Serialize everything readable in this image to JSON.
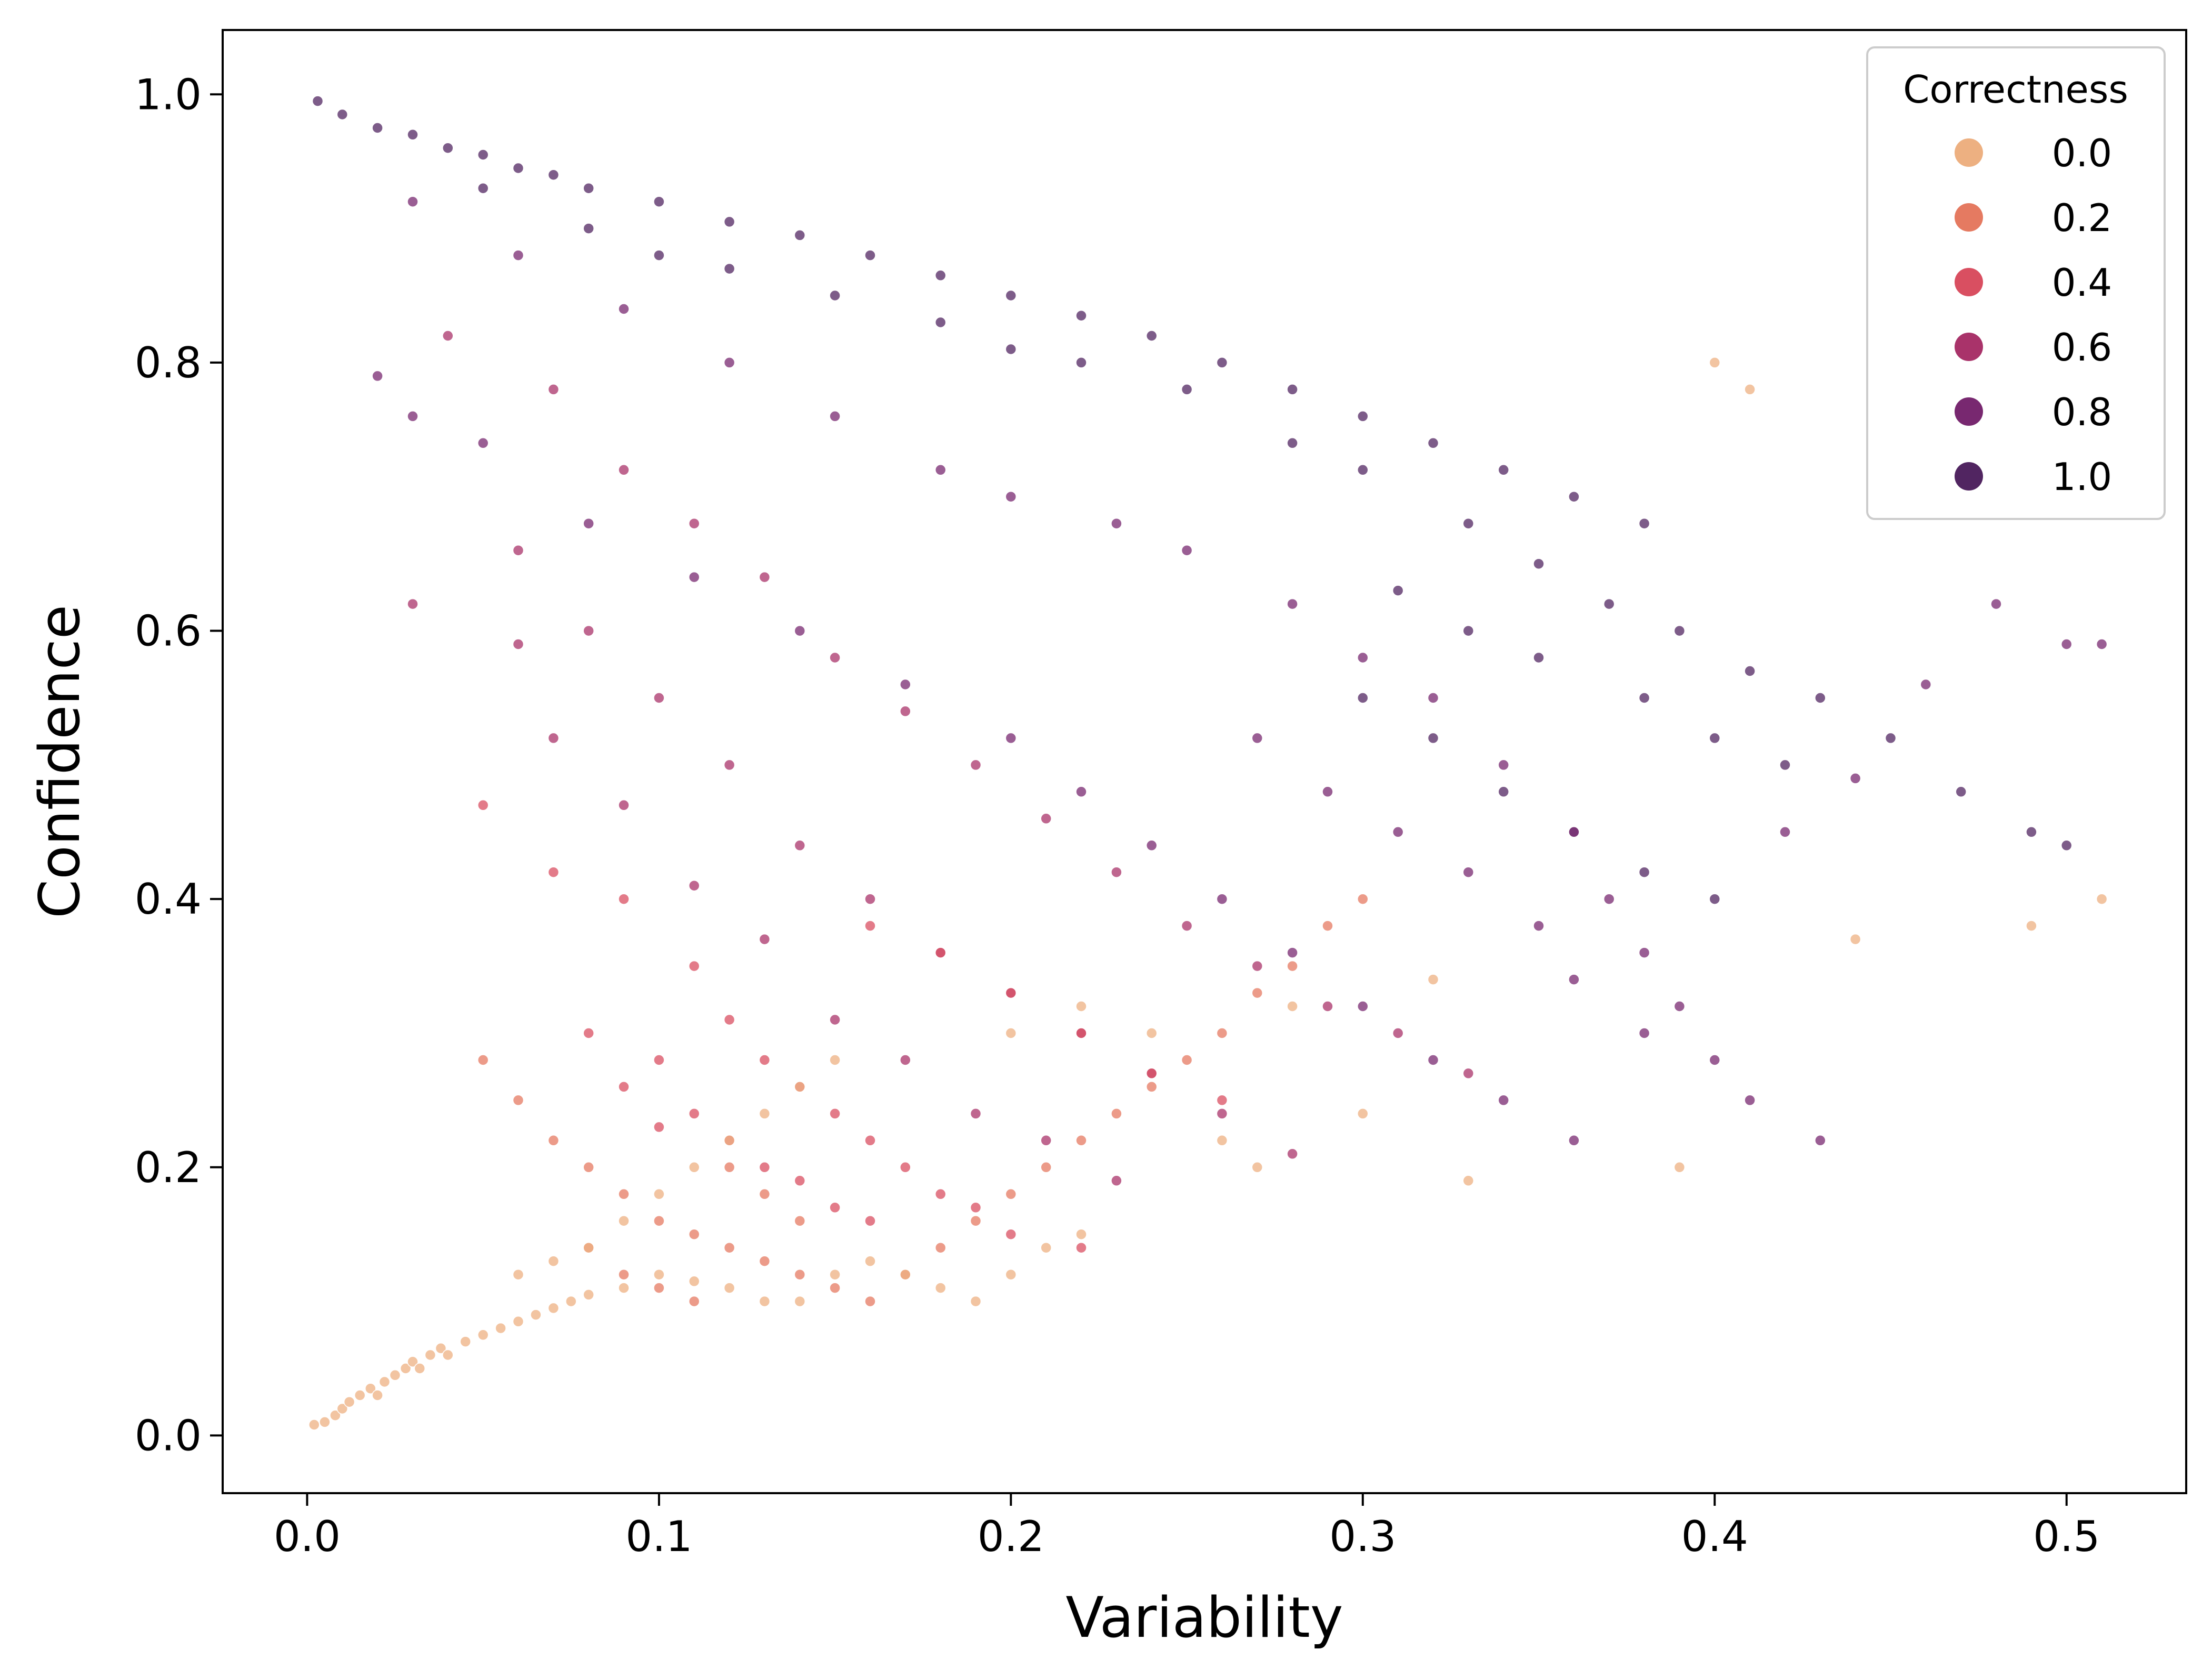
{
  "chart_data": {
    "type": "scatter",
    "title": "",
    "xlabel": "Variability",
    "ylabel": "Confidence",
    "xlim": [
      -0.024,
      0.534
    ],
    "ylim": [
      -0.043,
      1.048
    ],
    "xticks": [
      0.0,
      0.1,
      0.2,
      0.3,
      0.4,
      0.5
    ],
    "xtick_labels": [
      "0.0",
      "0.1",
      "0.2",
      "0.3",
      "0.4",
      "0.5"
    ],
    "yticks": [
      0.0,
      0.2,
      0.4,
      0.6,
      0.8,
      1.0
    ],
    "ytick_labels": [
      "0.0",
      "0.2",
      "0.4",
      "0.6",
      "0.8",
      "1.0"
    ],
    "grid": false,
    "legend": {
      "title": "Correctness",
      "placement": "top-right",
      "entries": [
        {
          "label": "0.0",
          "value": 0.0,
          "color": "#EDB081"
        },
        {
          "label": "0.2",
          "value": 0.2,
          "color": "#E57A61"
        },
        {
          "label": "0.4",
          "value": 0.4,
          "color": "#D94F61"
        },
        {
          "label": "0.6",
          "value": 0.6,
          "color": "#A9336A"
        },
        {
          "label": "0.8",
          "value": 0.8,
          "color": "#782870"
        },
        {
          "label": "1.0",
          "value": 1.0,
          "color": "#512561"
        }
      ]
    },
    "hue_groups": [
      {
        "correctness": 1.0,
        "color": "#512561",
        "points": [
          [
            0.003,
            0.995
          ],
          [
            0.01,
            0.985
          ],
          [
            0.02,
            0.975
          ],
          [
            0.03,
            0.97
          ],
          [
            0.04,
            0.96
          ],
          [
            0.05,
            0.955
          ],
          [
            0.06,
            0.945
          ],
          [
            0.07,
            0.94
          ],
          [
            0.08,
            0.93
          ],
          [
            0.1,
            0.92
          ],
          [
            0.12,
            0.905
          ],
          [
            0.14,
            0.895
          ],
          [
            0.16,
            0.88
          ],
          [
            0.18,
            0.865
          ],
          [
            0.2,
            0.85
          ],
          [
            0.22,
            0.835
          ],
          [
            0.24,
            0.82
          ],
          [
            0.26,
            0.8
          ],
          [
            0.28,
            0.78
          ],
          [
            0.3,
            0.76
          ],
          [
            0.32,
            0.74
          ],
          [
            0.34,
            0.72
          ],
          [
            0.36,
            0.7
          ],
          [
            0.38,
            0.68
          ],
          [
            0.05,
            0.93
          ],
          [
            0.08,
            0.9
          ],
          [
            0.1,
            0.88
          ],
          [
            0.12,
            0.87
          ],
          [
            0.15,
            0.85
          ],
          [
            0.18,
            0.83
          ],
          [
            0.2,
            0.81
          ],
          [
            0.22,
            0.8
          ],
          [
            0.25,
            0.78
          ],
          [
            0.28,
            0.74
          ],
          [
            0.3,
            0.72
          ],
          [
            0.33,
            0.68
          ],
          [
            0.35,
            0.65
          ],
          [
            0.37,
            0.62
          ],
          [
            0.39,
            0.6
          ],
          [
            0.41,
            0.57
          ],
          [
            0.43,
            0.55
          ],
          [
            0.45,
            0.52
          ],
          [
            0.47,
            0.48
          ],
          [
            0.49,
            0.45
          ],
          [
            0.5,
            0.44
          ],
          [
            0.31,
            0.63
          ],
          [
            0.33,
            0.6
          ],
          [
            0.35,
            0.58
          ],
          [
            0.38,
            0.55
          ],
          [
            0.4,
            0.52
          ],
          [
            0.42,
            0.5
          ],
          [
            0.3,
            0.55
          ],
          [
            0.32,
            0.52
          ],
          [
            0.34,
            0.48
          ],
          [
            0.36,
            0.45
          ],
          [
            0.38,
            0.42
          ],
          [
            0.4,
            0.4
          ]
        ]
      },
      {
        "correctness": 0.8,
        "color": "#782870",
        "points": [
          [
            0.03,
            0.92
          ],
          [
            0.06,
            0.88
          ],
          [
            0.09,
            0.84
          ],
          [
            0.12,
            0.8
          ],
          [
            0.15,
            0.76
          ],
          [
            0.18,
            0.72
          ],
          [
            0.2,
            0.7
          ],
          [
            0.23,
            0.68
          ],
          [
            0.25,
            0.66
          ],
          [
            0.28,
            0.62
          ],
          [
            0.3,
            0.58
          ],
          [
            0.32,
            0.55
          ],
          [
            0.34,
            0.5
          ],
          [
            0.36,
            0.45
          ],
          [
            0.37,
            0.4
          ],
          [
            0.38,
            0.36
          ],
          [
            0.39,
            0.32
          ],
          [
            0.4,
            0.28
          ],
          [
            0.41,
            0.25
          ],
          [
            0.43,
            0.22
          ],
          [
            0.27,
            0.52
          ],
          [
            0.29,
            0.48
          ],
          [
            0.31,
            0.45
          ],
          [
            0.33,
            0.42
          ],
          [
            0.35,
            0.38
          ],
          [
            0.36,
            0.34
          ],
          [
            0.38,
            0.3
          ],
          [
            0.02,
            0.79
          ],
          [
            0.03,
            0.76
          ],
          [
            0.05,
            0.74
          ],
          [
            0.08,
            0.68
          ],
          [
            0.11,
            0.64
          ],
          [
            0.14,
            0.6
          ],
          [
            0.17,
            0.56
          ],
          [
            0.2,
            0.52
          ],
          [
            0.22,
            0.48
          ],
          [
            0.24,
            0.44
          ],
          [
            0.26,
            0.4
          ],
          [
            0.28,
            0.36
          ],
          [
            0.3,
            0.32
          ],
          [
            0.32,
            0.28
          ],
          [
            0.34,
            0.25
          ],
          [
            0.36,
            0.22
          ],
          [
            0.5,
            0.59
          ],
          [
            0.51,
            0.59
          ],
          [
            0.48,
            0.62
          ],
          [
            0.46,
            0.56
          ],
          [
            0.44,
            0.49
          ],
          [
            0.42,
            0.45
          ]
        ]
      },
      {
        "correctness": 0.6,
        "color": "#A9336A",
        "points": [
          [
            0.04,
            0.82
          ],
          [
            0.07,
            0.78
          ],
          [
            0.09,
            0.72
          ],
          [
            0.11,
            0.68
          ],
          [
            0.13,
            0.64
          ],
          [
            0.15,
            0.58
          ],
          [
            0.17,
            0.54
          ],
          [
            0.19,
            0.5
          ],
          [
            0.21,
            0.46
          ],
          [
            0.23,
            0.42
          ],
          [
            0.25,
            0.38
          ],
          [
            0.27,
            0.35
          ],
          [
            0.29,
            0.32
          ],
          [
            0.31,
            0.3
          ],
          [
            0.33,
            0.27
          ],
          [
            0.06,
            0.66
          ],
          [
            0.08,
            0.6
          ],
          [
            0.1,
            0.55
          ],
          [
            0.12,
            0.5
          ],
          [
            0.14,
            0.44
          ],
          [
            0.16,
            0.4
          ],
          [
            0.18,
            0.36
          ],
          [
            0.2,
            0.33
          ],
          [
            0.22,
            0.3
          ],
          [
            0.24,
            0.27
          ],
          [
            0.26,
            0.24
          ],
          [
            0.28,
            0.21
          ],
          [
            0.03,
            0.62
          ],
          [
            0.06,
            0.59
          ],
          [
            0.07,
            0.52
          ],
          [
            0.09,
            0.47
          ],
          [
            0.11,
            0.41
          ],
          [
            0.13,
            0.37
          ],
          [
            0.15,
            0.31
          ],
          [
            0.17,
            0.28
          ],
          [
            0.19,
            0.24
          ],
          [
            0.21,
            0.22
          ],
          [
            0.23,
            0.19
          ]
        ]
      },
      {
        "correctness": 0.4,
        "color": "#D94F61",
        "points": [
          [
            0.05,
            0.47
          ],
          [
            0.07,
            0.42
          ],
          [
            0.09,
            0.4
          ],
          [
            0.11,
            0.35
          ],
          [
            0.12,
            0.31
          ],
          [
            0.13,
            0.28
          ],
          [
            0.14,
            0.26
          ],
          [
            0.15,
            0.24
          ],
          [
            0.16,
            0.22
          ],
          [
            0.17,
            0.2
          ],
          [
            0.18,
            0.18
          ],
          [
            0.19,
            0.17
          ],
          [
            0.2,
            0.15
          ],
          [
            0.22,
            0.14
          ],
          [
            0.1,
            0.28
          ],
          [
            0.11,
            0.24
          ],
          [
            0.12,
            0.22
          ],
          [
            0.13,
            0.2
          ],
          [
            0.14,
            0.19
          ],
          [
            0.15,
            0.17
          ],
          [
            0.16,
            0.16
          ],
          [
            0.08,
            0.3
          ],
          [
            0.09,
            0.26
          ],
          [
            0.1,
            0.23
          ],
          [
            0.2,
            0.33
          ],
          [
            0.22,
            0.3
          ],
          [
            0.24,
            0.27
          ],
          [
            0.26,
            0.25
          ],
          [
            0.18,
            0.36
          ],
          [
            0.16,
            0.38
          ]
        ]
      },
      {
        "correctness": 0.2,
        "color": "#E57A61",
        "points": [
          [
            0.05,
            0.28
          ],
          [
            0.06,
            0.25
          ],
          [
            0.07,
            0.22
          ],
          [
            0.08,
            0.2
          ],
          [
            0.09,
            0.18
          ],
          [
            0.1,
            0.16
          ],
          [
            0.11,
            0.15
          ],
          [
            0.12,
            0.14
          ],
          [
            0.13,
            0.13
          ],
          [
            0.14,
            0.12
          ],
          [
            0.15,
            0.11
          ],
          [
            0.16,
            0.1
          ],
          [
            0.17,
            0.12
          ],
          [
            0.18,
            0.14
          ],
          [
            0.19,
            0.16
          ],
          [
            0.2,
            0.18
          ],
          [
            0.21,
            0.2
          ],
          [
            0.22,
            0.22
          ],
          [
            0.23,
            0.24
          ],
          [
            0.24,
            0.26
          ],
          [
            0.25,
            0.28
          ],
          [
            0.26,
            0.3
          ],
          [
            0.27,
            0.33
          ],
          [
            0.28,
            0.35
          ],
          [
            0.29,
            0.38
          ],
          [
            0.3,
            0.4
          ],
          [
            0.08,
            0.14
          ],
          [
            0.09,
            0.12
          ],
          [
            0.1,
            0.11
          ],
          [
            0.11,
            0.1
          ],
          [
            0.12,
            0.2
          ],
          [
            0.13,
            0.18
          ],
          [
            0.14,
            0.16
          ]
        ]
      },
      {
        "correctness": 0.0,
        "color": "#EDB081",
        "points": [
          [
            0.002,
            0.008
          ],
          [
            0.005,
            0.01
          ],
          [
            0.008,
            0.015
          ],
          [
            0.01,
            0.02
          ],
          [
            0.012,
            0.025
          ],
          [
            0.015,
            0.03
          ],
          [
            0.018,
            0.035
          ],
          [
            0.02,
            0.03
          ],
          [
            0.022,
            0.04
          ],
          [
            0.025,
            0.045
          ],
          [
            0.028,
            0.05
          ],
          [
            0.03,
            0.055
          ],
          [
            0.032,
            0.05
          ],
          [
            0.035,
            0.06
          ],
          [
            0.038,
            0.065
          ],
          [
            0.04,
            0.06
          ],
          [
            0.045,
            0.07
          ],
          [
            0.05,
            0.075
          ],
          [
            0.055,
            0.08
          ],
          [
            0.06,
            0.085
          ],
          [
            0.065,
            0.09
          ],
          [
            0.07,
            0.095
          ],
          [
            0.075,
            0.1
          ],
          [
            0.08,
            0.105
          ],
          [
            0.09,
            0.11
          ],
          [
            0.1,
            0.12
          ],
          [
            0.11,
            0.115
          ],
          [
            0.12,
            0.11
          ],
          [
            0.13,
            0.1
          ],
          [
            0.14,
            0.1
          ],
          [
            0.15,
            0.12
          ],
          [
            0.16,
            0.13
          ],
          [
            0.17,
            0.12
          ],
          [
            0.18,
            0.11
          ],
          [
            0.19,
            0.1
          ],
          [
            0.2,
            0.12
          ],
          [
            0.21,
            0.14
          ],
          [
            0.22,
            0.15
          ],
          [
            0.06,
            0.12
          ],
          [
            0.07,
            0.13
          ],
          [
            0.08,
            0.14
          ],
          [
            0.09,
            0.16
          ],
          [
            0.1,
            0.18
          ],
          [
            0.11,
            0.2
          ],
          [
            0.12,
            0.22
          ],
          [
            0.13,
            0.24
          ],
          [
            0.14,
            0.26
          ],
          [
            0.15,
            0.28
          ],
          [
            0.2,
            0.3
          ],
          [
            0.22,
            0.32
          ],
          [
            0.24,
            0.3
          ],
          [
            0.26,
            0.22
          ],
          [
            0.27,
            0.2
          ],
          [
            0.28,
            0.32
          ],
          [
            0.3,
            0.24
          ],
          [
            0.32,
            0.34
          ],
          [
            0.33,
            0.19
          ],
          [
            0.39,
            0.2
          ],
          [
            0.44,
            0.37
          ],
          [
            0.49,
            0.38
          ],
          [
            0.51,
            0.4
          ],
          [
            0.4,
            0.8
          ],
          [
            0.41,
            0.78
          ]
        ]
      }
    ]
  }
}
